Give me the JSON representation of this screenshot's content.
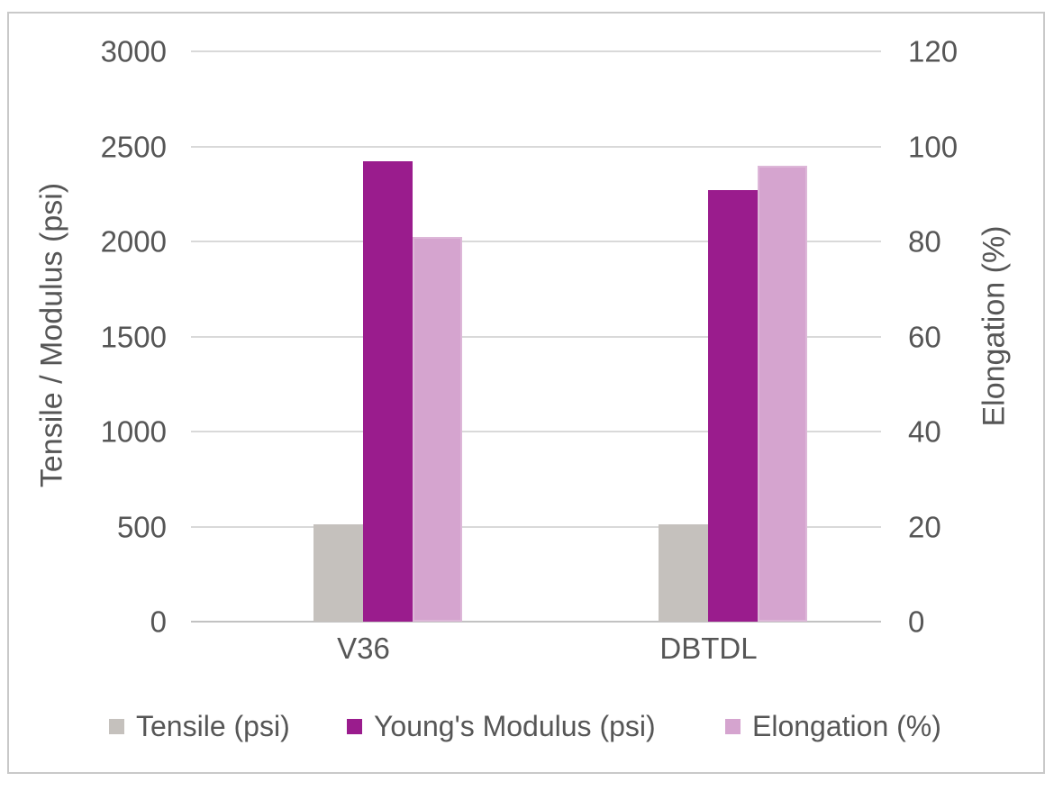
{
  "chart_data": {
    "type": "bar",
    "categories": [
      "V36",
      "DBTDL"
    ],
    "series": [
      {
        "name": "Tensile (psi)",
        "axis": "left",
        "color": "#c5c1bd",
        "values": [
          510,
          510
        ]
      },
      {
        "name": "Young's Modulus (psi)",
        "axis": "left",
        "color": "#9a1c8d",
        "values": [
          2420,
          2270
        ]
      },
      {
        "name": "Elongation (%)",
        "axis": "right",
        "color": "#d5a4cf",
        "values": [
          81,
          96
        ]
      }
    ],
    "left_axis": {
      "label": "Tensile / Modulus (psi)",
      "min": 0,
      "max": 3000,
      "ticks": [
        0,
        500,
        1000,
        1500,
        2000,
        2500,
        3000
      ]
    },
    "right_axis": {
      "label": "Elongation (%)",
      "min": 0,
      "max": 120,
      "ticks": [
        0,
        20,
        40,
        60,
        80,
        100,
        120
      ]
    },
    "grid": true,
    "legend_position": "bottom"
  },
  "colors": {
    "gridline": "#d9d9d9",
    "axis_line": "#c2c2c2",
    "text": "#565656",
    "frame_border": "#c9c9c9",
    "background": "#ffffff"
  }
}
